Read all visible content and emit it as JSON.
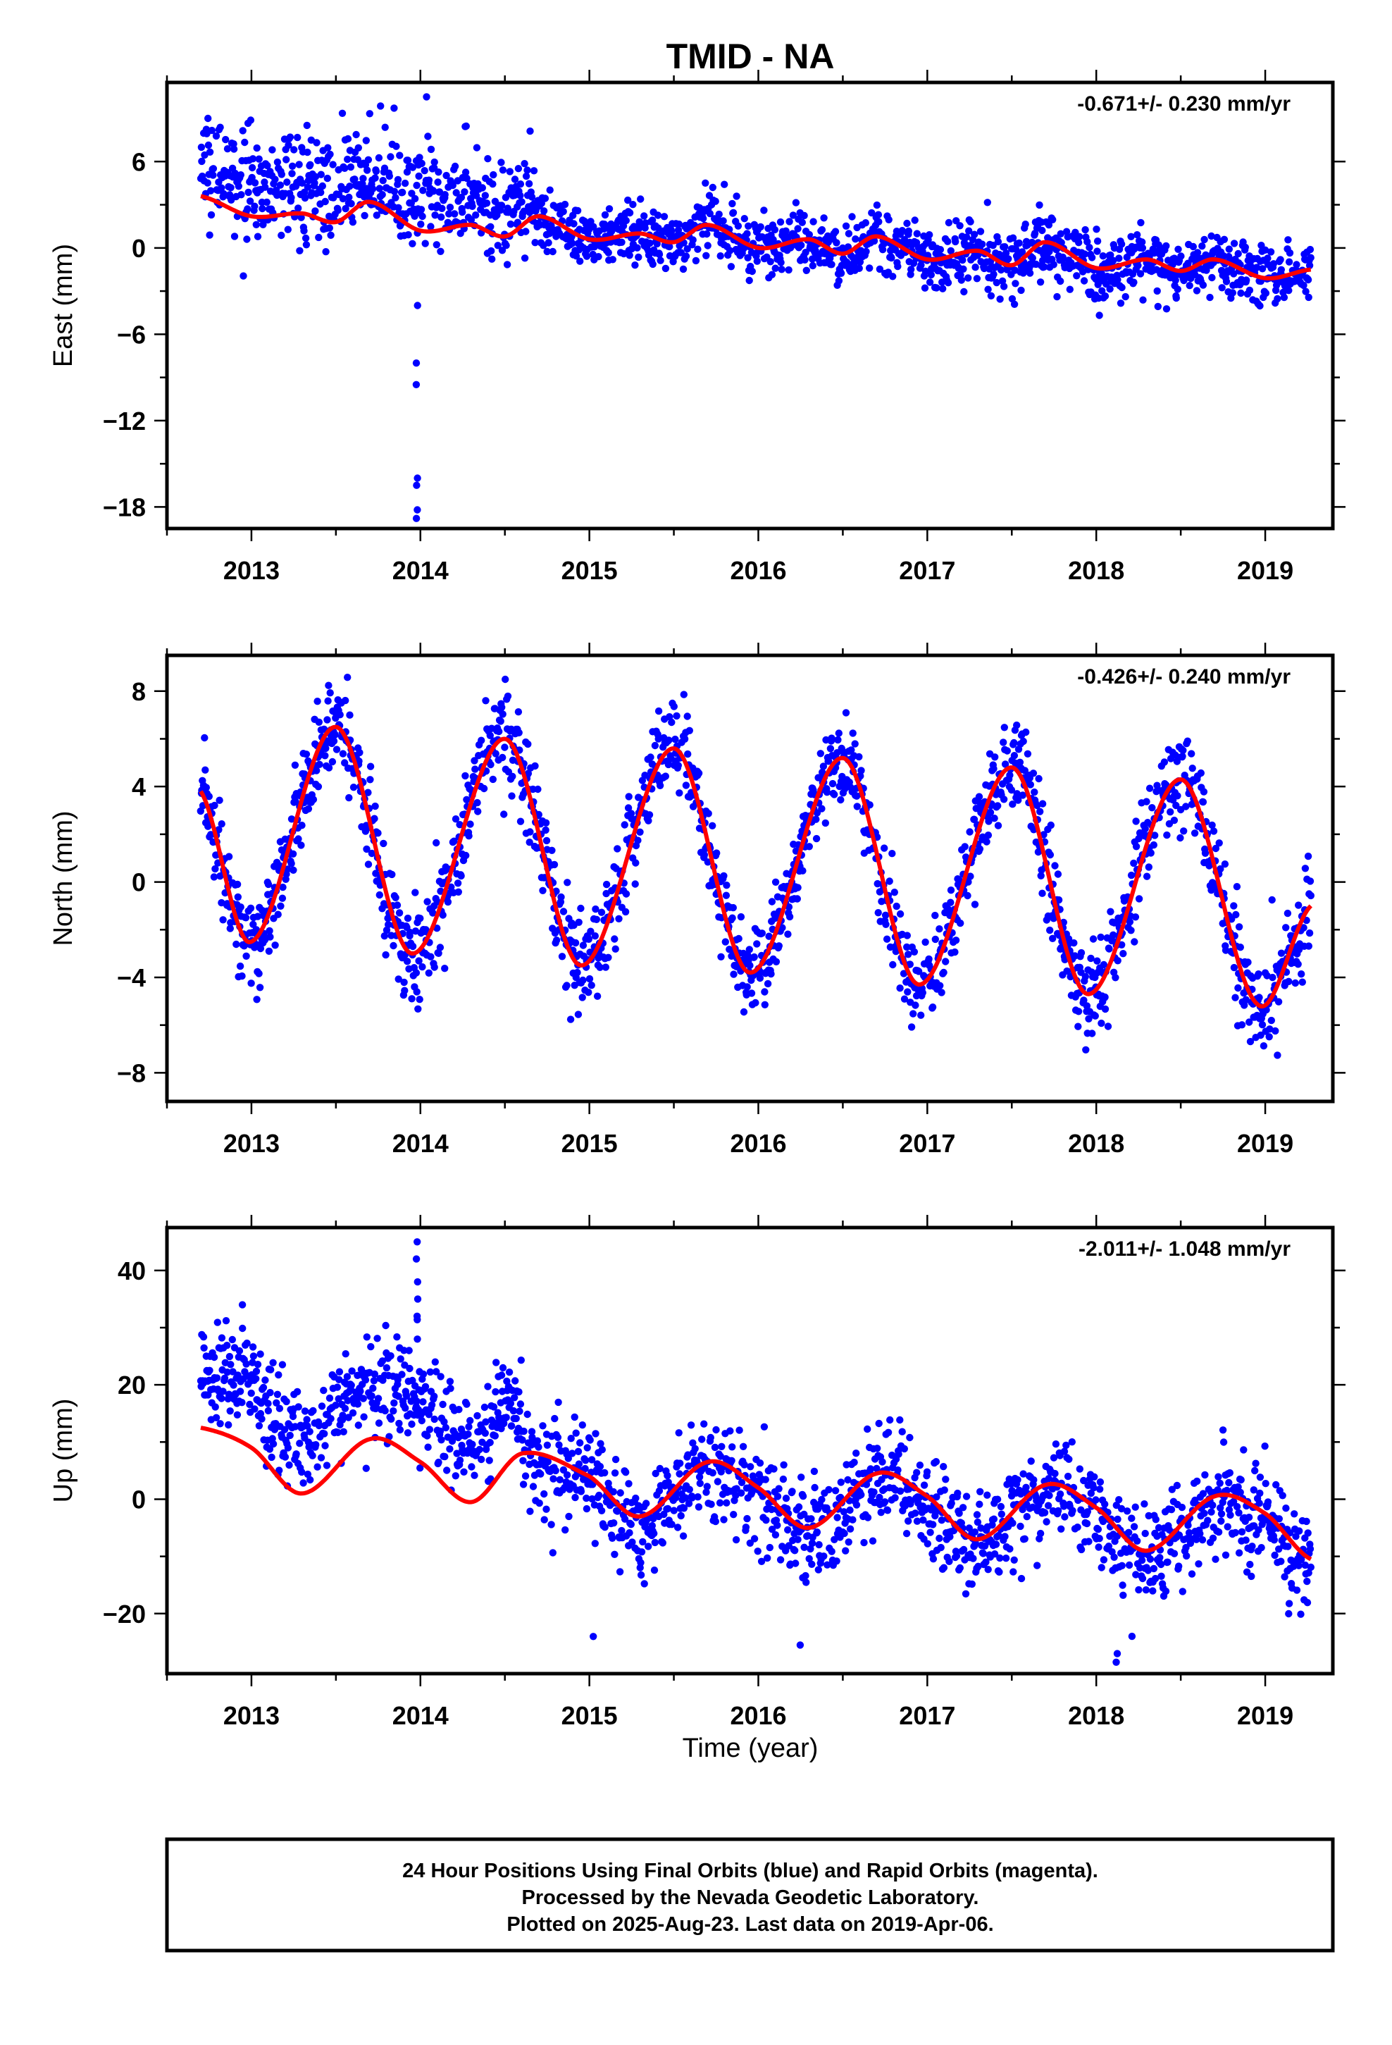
{
  "title": "TMID - NA",
  "xlabel": "Time (year)",
  "footer": {
    "line1": "24 Hour Positions Using Final Orbits (blue) and Rapid Orbits (magenta).",
    "line2": "Processed by the Nevada Geodetic Laboratory.",
    "line3": "Plotted on 2025-Aug-23. Last data on 2019-Apr-06."
  },
  "colors": {
    "final_orbits": "#0000ff",
    "model": "#ff0000",
    "rapid_orbits": "#ff00ff",
    "frame": "#000000"
  },
  "chart_data": [
    {
      "type": "scatter",
      "panel": "East",
      "ylabel": "East (mm)",
      "rate_label": "-0.671+/- 0.230 mm/yr",
      "xlim": [
        2012.5,
        2019.4
      ],
      "ylim": [
        -19.5,
        11.5
      ],
      "xticks": [
        2013,
        2014,
        2015,
        2016,
        2017,
        2018,
        2019
      ],
      "yticks": [
        6,
        0,
        -6,
        -12,
        -18
      ],
      "ytick_labels": [
        "6",
        "0",
        "−6",
        "−12",
        "−18"
      ],
      "trend": {
        "slope": -0.671,
        "anchor_year": 2016.0,
        "anchor_value": 0.75
      },
      "seasonal": {
        "annual_amp": 0.8,
        "annual_phase_yr": 0.62,
        "semiannual_amp": 0.15
      },
      "offsets": [
        {
          "year": 2013.95,
          "step": 0.0
        }
      ],
      "model_curve_start_value": 3.6,
      "noise_std": 1.1,
      "segments": [
        {
          "start": 2012.65,
          "end": 2014.65,
          "bias": 2.0,
          "noise_std": 1.8
        },
        {
          "start": 2014.65,
          "end": 2019.27,
          "bias": 0.0,
          "noise_std": 1.1
        }
      ],
      "outliers": [
        {
          "year": 2013.98,
          "values": [
            -4.0,
            -8.0,
            -9.5,
            -16.0,
            -16.5,
            -18.2,
            -18.8
          ]
        },
        {
          "year": 2014.04,
          "values": [
            10.5
          ]
        }
      ],
      "samples": [
        [
          2012.7,
          3.6
        ],
        [
          2013.0,
          2.2
        ],
        [
          2013.3,
          2.4
        ],
        [
          2013.5,
          1.8
        ],
        [
          2013.7,
          3.2
        ],
        [
          2014.0,
          1.2
        ],
        [
          2014.3,
          1.6
        ],
        [
          2014.5,
          0.8
        ],
        [
          2014.7,
          2.2
        ],
        [
          2015.0,
          0.6
        ],
        [
          2015.3,
          1.0
        ],
        [
          2015.5,
          0.4
        ],
        [
          2015.7,
          1.6
        ],
        [
          2016.0,
          0.0
        ],
        [
          2016.3,
          0.6
        ],
        [
          2016.5,
          -0.4
        ],
        [
          2016.7,
          0.8
        ],
        [
          2017.0,
          -0.8
        ],
        [
          2017.3,
          -0.2
        ],
        [
          2017.5,
          -1.2
        ],
        [
          2017.7,
          0.4
        ],
        [
          2018.0,
          -1.4
        ],
        [
          2018.3,
          -0.8
        ],
        [
          2018.5,
          -1.6
        ],
        [
          2018.7,
          -0.8
        ],
        [
          2019.0,
          -2.1
        ],
        [
          2019.27,
          -1.5
        ]
      ]
    },
    {
      "type": "scatter",
      "panel": "North",
      "ylabel": "North (mm)",
      "rate_label": "-0.426+/- 0.240 mm/yr",
      "xlim": [
        2012.5,
        2019.4
      ],
      "ylim": [
        -9.2,
        9.5
      ],
      "xticks": [
        2013,
        2014,
        2015,
        2016,
        2017,
        2018,
        2019
      ],
      "yticks": [
        8,
        4,
        0,
        -4,
        -8
      ],
      "ytick_labels": [
        "8",
        "4",
        "0",
        "−4",
        "−8"
      ],
      "trend": {
        "slope": -0.426,
        "anchor_year": 2016.0,
        "anchor_value": 0.9
      },
      "seasonal": {
        "annual_amp": 4.7,
        "annual_phase_yr": 0.5,
        "semiannual_amp": 0.6
      },
      "noise_std": 1.0,
      "samples": [
        [
          2012.7,
          3.8
        ],
        [
          2013.0,
          -2.5
        ],
        [
          2013.5,
          6.5
        ],
        [
          2013.95,
          -3.0
        ],
        [
          2014.5,
          6.0
        ],
        [
          2014.95,
          -3.5
        ],
        [
          2015.5,
          5.6
        ],
        [
          2015.95,
          -3.8
        ],
        [
          2016.5,
          5.2
        ],
        [
          2016.95,
          -4.3
        ],
        [
          2017.5,
          4.8
        ],
        [
          2017.95,
          -4.7
        ],
        [
          2018.5,
          4.3
        ],
        [
          2018.95,
          -5.1
        ],
        [
          2019.27,
          -1.0
        ]
      ]
    },
    {
      "type": "scatter",
      "panel": "Up",
      "ylabel": "Up (mm)",
      "rate_label": "-2.011+/- 1.048 mm/yr",
      "xlim": [
        2012.5,
        2019.4
      ],
      "ylim": [
        -30.5,
        47.5
      ],
      "xticks": [
        2013,
        2014,
        2015,
        2016,
        2017,
        2018,
        2019
      ],
      "yticks": [
        40,
        20,
        0,
        -20
      ],
      "ytick_labels": [
        "40",
        "20",
        "0",
        "−20"
      ],
      "noise_std": 4.5,
      "segments": [
        {
          "start": 2012.65,
          "end": 2014.6,
          "bias": 10.0,
          "noise_std": 4.5
        },
        {
          "start": 2014.6,
          "end": 2019.27,
          "bias": -1.0,
          "noise_std": 4.5
        }
      ],
      "outliers": [
        {
          "year": 2013.98,
          "values": [
            28.0,
            32.0,
            35.0,
            38.0,
            42.0,
            45.0
          ]
        },
        {
          "year": 2012.95,
          "values": [
            34.0
          ]
        },
        {
          "year": 2016.25,
          "values": [
            -25.5
          ]
        },
        {
          "year": 2018.12,
          "values": [
            -27.0,
            -28.5
          ]
        },
        {
          "year": 2015.02,
          "values": [
            -24.0
          ]
        }
      ],
      "samples": [
        [
          2012.7,
          12.5
        ],
        [
          2013.0,
          9.0
        ],
        [
          2013.3,
          1.0
        ],
        [
          2013.7,
          10.5
        ],
        [
          2014.0,
          6.5
        ],
        [
          2014.3,
          -0.5
        ],
        [
          2014.6,
          8.0
        ],
        [
          2015.0,
          4.0
        ],
        [
          2015.3,
          -3.0
        ],
        [
          2015.7,
          6.5
        ],
        [
          2016.0,
          2.0
        ],
        [
          2016.3,
          -5.0
        ],
        [
          2016.7,
          4.5
        ],
        [
          2017.0,
          0.5
        ],
        [
          2017.3,
          -7.0
        ],
        [
          2017.7,
          2.5
        ],
        [
          2018.0,
          -1.5
        ],
        [
          2018.3,
          -9.0
        ],
        [
          2018.7,
          0.5
        ],
        [
          2019.0,
          -2.5
        ],
        [
          2019.27,
          -10.5
        ]
      ]
    }
  ]
}
